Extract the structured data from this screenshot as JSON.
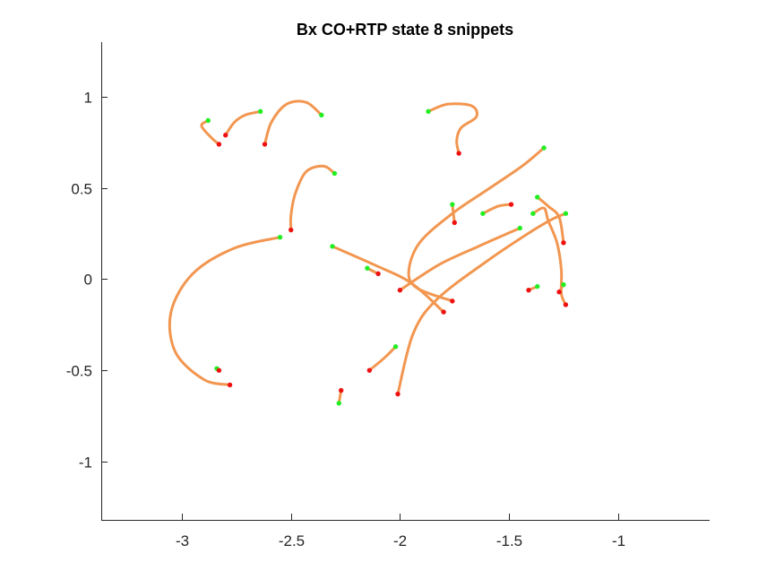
{
  "chart_data": {
    "type": "line",
    "title": "Bx  CO+RTP state 8 snippets",
    "xlabel": "",
    "ylabel": "",
    "xlim": [
      -3.37,
      -0.58
    ],
    "ylim": [
      -1.32,
      1.3
    ],
    "x_ticks": [
      -3,
      -2.5,
      -2,
      -1.5,
      -1
    ],
    "x_tick_labels": [
      "-3",
      "-2.5",
      "-2",
      "-1.5",
      "-1"
    ],
    "y_ticks": [
      -1,
      -0.5,
      0,
      0.5,
      1
    ],
    "y_tick_labels": [
      "-1",
      "-0.5",
      "0",
      "0.5",
      "1"
    ],
    "grid": false,
    "legend": "none",
    "colors": {
      "trajectory": "#F29650",
      "start_marker": "#22EE22",
      "end_marker": "#EE1111",
      "axis": "#262626"
    },
    "series": [
      {
        "points": [
          [
            -2.88,
            0.87
          ],
          [
            -2.91,
            0.84
          ],
          [
            -2.86,
            0.77
          ],
          [
            -2.83,
            0.74
          ]
        ]
      },
      {
        "points": [
          [
            -2.64,
            0.92
          ],
          [
            -2.71,
            0.9
          ],
          [
            -2.76,
            0.86
          ],
          [
            -2.8,
            0.79
          ]
        ]
      },
      {
        "points": [
          [
            -2.36,
            0.9
          ],
          [
            -2.43,
            0.97
          ],
          [
            -2.52,
            0.96
          ],
          [
            -2.59,
            0.86
          ],
          [
            -2.62,
            0.74
          ]
        ]
      },
      {
        "points": [
          [
            -1.87,
            0.92
          ],
          [
            -1.78,
            0.96
          ],
          [
            -1.67,
            0.95
          ],
          [
            -1.65,
            0.89
          ],
          [
            -1.72,
            0.83
          ],
          [
            -1.74,
            0.76
          ],
          [
            -1.73,
            0.69
          ]
        ]
      },
      {
        "points": [
          [
            -2.3,
            0.58
          ],
          [
            -2.35,
            0.62
          ],
          [
            -2.43,
            0.59
          ],
          [
            -2.48,
            0.47
          ],
          [
            -2.5,
            0.35
          ],
          [
            -2.5,
            0.27
          ]
        ]
      },
      {
        "points": [
          [
            -2.55,
            0.23
          ],
          [
            -2.76,
            0.17
          ],
          [
            -2.95,
            0.03
          ],
          [
            -3.05,
            -0.18
          ],
          [
            -3.03,
            -0.4
          ],
          [
            -2.9,
            -0.55
          ],
          [
            -2.78,
            -0.58
          ]
        ]
      },
      {
        "points": [
          [
            -2.84,
            -0.49
          ],
          [
            -2.83,
            -0.5
          ]
        ]
      },
      {
        "points": [
          [
            -2.31,
            0.18
          ],
          [
            -2.12,
            0.08
          ],
          [
            -1.95,
            -0.02
          ],
          [
            -1.8,
            -0.18
          ]
        ]
      },
      {
        "points": [
          [
            -2.15,
            0.06
          ],
          [
            -2.1,
            0.03
          ]
        ]
      },
      {
        "points": [
          [
            -1.34,
            0.72
          ],
          [
            -1.44,
            0.62
          ],
          [
            -1.6,
            0.49
          ],
          [
            -1.76,
            0.36
          ],
          [
            -1.91,
            0.2
          ],
          [
            -1.96,
            0.04
          ],
          [
            -1.92,
            -0.05
          ],
          [
            -1.76,
            -0.12
          ]
        ]
      },
      {
        "points": [
          [
            -1.45,
            0.28
          ],
          [
            -1.64,
            0.18
          ],
          [
            -1.82,
            0.08
          ],
          [
            -2.0,
            -0.06
          ]
        ]
      },
      {
        "points": [
          [
            -1.76,
            0.41
          ],
          [
            -1.75,
            0.31
          ]
        ]
      },
      {
        "points": [
          [
            -1.62,
            0.36
          ],
          [
            -1.55,
            0.4
          ],
          [
            -1.49,
            0.41
          ]
        ]
      },
      {
        "points": [
          [
            -1.24,
            0.36
          ],
          [
            -1.3,
            0.33
          ],
          [
            -1.4,
            0.26
          ],
          [
            -1.6,
            0.1
          ],
          [
            -1.83,
            -0.11
          ],
          [
            -1.94,
            -0.3
          ],
          [
            -2.01,
            -0.63
          ]
        ]
      },
      {
        "points": [
          [
            -1.37,
            0.45
          ],
          [
            -1.32,
            0.4
          ],
          [
            -1.27,
            0.34
          ],
          [
            -1.25,
            0.2
          ]
        ]
      },
      {
        "points": [
          [
            -1.39,
            0.36
          ],
          [
            -1.34,
            0.39
          ],
          [
            -1.32,
            0.32
          ],
          [
            -1.28,
            0.2
          ],
          [
            -1.26,
            0.05
          ],
          [
            -1.26,
            -0.08
          ],
          [
            -1.24,
            -0.14
          ]
        ]
      },
      {
        "points": [
          [
            -1.25,
            -0.03
          ],
          [
            -1.27,
            -0.07
          ]
        ]
      },
      {
        "points": [
          [
            -1.37,
            -0.04
          ],
          [
            -1.41,
            -0.06
          ]
        ]
      },
      {
        "points": [
          [
            -2.02,
            -0.37
          ],
          [
            -2.07,
            -0.43
          ],
          [
            -2.14,
            -0.5
          ]
        ]
      },
      {
        "points": [
          [
            -2.28,
            -0.68
          ],
          [
            -2.27,
            -0.61
          ]
        ]
      }
    ]
  }
}
